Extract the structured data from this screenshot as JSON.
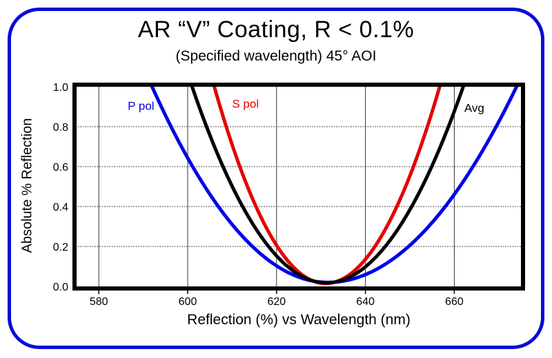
{
  "window": {
    "background_color": "#ffffff",
    "border_color": "#0a0ad8"
  },
  "header": {
    "title": "AR “V” Coating, R < 0.1%",
    "subtitle": "(Specified wavelength) 45° AOI"
  },
  "chart_data": {
    "type": "line",
    "title": "AR “V” Coating, R < 0.1%",
    "subtitle": "(Specified wavelength) 45° AOI",
    "xlabel": "Reflection (%) vs Wavelength (nm)",
    "ylabel": "Absolute % Reflection",
    "xlim": [
      575,
      675
    ],
    "ylim": [
      0.0,
      1.0
    ],
    "x_ticks": [
      580,
      600,
      620,
      640,
      660
    ],
    "y_ticks": [
      0.0,
      0.2,
      0.4,
      0.6,
      0.8,
      1.0
    ],
    "x_gridlines": [
      580,
      600,
      620,
      640,
      660
    ],
    "y_gridlines": [
      0.2,
      0.4,
      0.6,
      0.8
    ],
    "grid": true,
    "frame_color": "#000000",
    "legend_position": "inline-labels",
    "series": [
      {
        "name": "P pol",
        "color": "#0000e8",
        "model": {
          "shape": "parabola",
          "center_nm": 631.5,
          "min_reflection_pct": 0.02,
          "half_width_left_nm": 39.5,
          "half_width_right_nm": 42.5
        },
        "points_nm_pct": [
          [
            592.0,
            1.0
          ],
          [
            596.3,
            0.8
          ],
          [
            601.1,
            0.6
          ],
          [
            606.9,
            0.4
          ],
          [
            614.6,
            0.2
          ],
          [
            631.5,
            0.02
          ],
          [
            649.7,
            0.2
          ],
          [
            658.0,
            0.4
          ],
          [
            664.2,
            0.6
          ],
          [
            669.4,
            0.8
          ],
          [
            674.0,
            1.0
          ]
        ],
        "label_pos": {
          "x_nm": 589.5,
          "y_pct": 0.905
        }
      },
      {
        "name": "S pol",
        "color": "#e60000",
        "model": {
          "shape": "parabola",
          "center_nm": 631.0,
          "min_reflection_pct": 0.015,
          "half_width_left_nm": 25.0,
          "half_width_right_nm": 25.7
        },
        "points_nm_pct": [
          [
            606.0,
            1.0
          ],
          [
            608.7,
            0.8
          ],
          [
            611.8,
            0.6
          ],
          [
            615.4,
            0.4
          ],
          [
            620.2,
            0.2
          ],
          [
            631.0,
            0.015
          ],
          [
            642.1,
            0.2
          ],
          [
            647.1,
            0.4
          ],
          [
            650.8,
            0.6
          ],
          [
            653.9,
            0.8
          ],
          [
            656.7,
            1.0
          ]
        ],
        "label_pos": {
          "x_nm": 613.0,
          "y_pct": 0.915
        }
      },
      {
        "name": "Avg",
        "color": "#000000",
        "model": {
          "shape": "parabola",
          "center_nm": 631.2,
          "min_reflection_pct": 0.018,
          "half_width_left_nm": 30.2,
          "half_width_right_nm": 30.8
        },
        "points_nm_pct": [
          [
            601.0,
            1.0
          ],
          [
            604.2,
            0.8
          ],
          [
            608.0,
            0.6
          ],
          [
            612.4,
            0.4
          ],
          [
            618.2,
            0.2
          ],
          [
            631.2,
            0.018
          ],
          [
            644.5,
            0.2
          ],
          [
            650.4,
            0.4
          ],
          [
            654.9,
            0.6
          ],
          [
            658.7,
            0.8
          ],
          [
            662.0,
            1.0
          ]
        ],
        "label_pos": {
          "x_nm": 664.5,
          "y_pct": 0.895
        }
      }
    ]
  }
}
